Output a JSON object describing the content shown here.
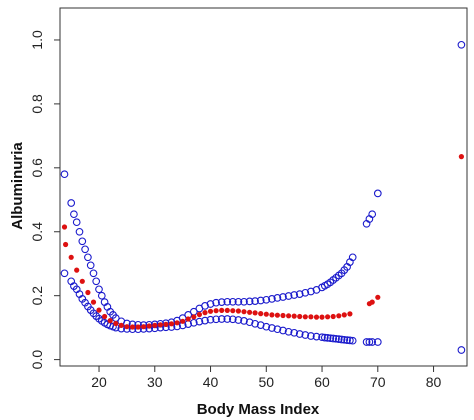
{
  "chart_data": {
    "type": "scatter",
    "title": "",
    "xlabel": "Body Mass Index",
    "ylabel": "Albuminuria",
    "xlim": [
      13,
      86
    ],
    "ylim": [
      -0.02,
      1.1
    ],
    "xticks": [
      20,
      30,
      40,
      50,
      60,
      70,
      80
    ],
    "yticks": [
      0.0,
      0.2,
      0.4,
      0.6,
      0.8,
      1.0
    ],
    "ytick_labels": [
      "0.0",
      "0.2",
      "0.4",
      "0.6",
      "0.8",
      "1.0"
    ],
    "grid": false,
    "legend": "none",
    "series": [
      {
        "role": "estimate",
        "marker": "filled-circle",
        "color": "#dd1111",
        "x": [
          13.8,
          14,
          15,
          16,
          17,
          18,
          19,
          20,
          21,
          22,
          23,
          24,
          25,
          26,
          27,
          28,
          29,
          30,
          31,
          32,
          33,
          34,
          35,
          36,
          37,
          38,
          39,
          40,
          41,
          42,
          43,
          44,
          45,
          46,
          47,
          48,
          49,
          50,
          51,
          52,
          53,
          54,
          55,
          56,
          57,
          58,
          59,
          60,
          61,
          62,
          63,
          64,
          65,
          68.5,
          69,
          70,
          85
        ],
        "y": [
          0.415,
          0.36,
          0.32,
          0.28,
          0.245,
          0.21,
          0.18,
          0.155,
          0.135,
          0.122,
          0.113,
          0.107,
          0.103,
          0.102,
          0.102,
          0.103,
          0.105,
          0.107,
          0.109,
          0.11,
          0.112,
          0.115,
          0.12,
          0.127,
          0.134,
          0.141,
          0.147,
          0.151,
          0.153,
          0.154,
          0.154,
          0.153,
          0.152,
          0.15,
          0.148,
          0.146,
          0.144,
          0.142,
          0.14,
          0.139,
          0.138,
          0.137,
          0.136,
          0.135,
          0.134,
          0.134,
          0.133,
          0.133,
          0.134,
          0.135,
          0.137,
          0.14,
          0.143,
          0.175,
          0.18,
          0.195,
          0.635
        ]
      },
      {
        "role": "upper-ci",
        "marker": "open-circle",
        "color": "#1a1acc",
        "x": [
          13.8,
          15,
          15.5,
          16,
          16.5,
          17,
          17.5,
          18,
          18.5,
          19,
          19.5,
          20,
          20.5,
          21,
          21.5,
          22,
          22.5,
          23,
          24,
          25,
          26,
          27,
          28,
          29,
          30,
          31,
          32,
          33,
          34,
          35,
          36,
          37,
          38,
          39,
          40,
          41,
          42,
          43,
          44,
          45,
          46,
          47,
          48,
          49,
          50,
          51,
          52,
          53,
          54,
          55,
          56,
          57,
          58,
          59,
          60,
          60.5,
          61,
          61.5,
          62,
          62.5,
          63,
          63.5,
          64,
          64.5,
          65,
          65.5,
          68,
          68.5,
          69,
          70,
          85
        ],
        "y": [
          0.58,
          0.49,
          0.455,
          0.43,
          0.4,
          0.37,
          0.345,
          0.32,
          0.295,
          0.27,
          0.245,
          0.22,
          0.2,
          0.18,
          0.165,
          0.15,
          0.14,
          0.13,
          0.12,
          0.113,
          0.11,
          0.109,
          0.108,
          0.109,
          0.11,
          0.112,
          0.114,
          0.117,
          0.122,
          0.13,
          0.14,
          0.15,
          0.16,
          0.168,
          0.174,
          0.178,
          0.18,
          0.181,
          0.181,
          0.181,
          0.181,
          0.182,
          0.183,
          0.185,
          0.187,
          0.19,
          0.193,
          0.196,
          0.199,
          0.202,
          0.205,
          0.209,
          0.213,
          0.218,
          0.226,
          0.231,
          0.236,
          0.242,
          0.249,
          0.256,
          0.263,
          0.27,
          0.28,
          0.29,
          0.305,
          0.32,
          0.425,
          0.44,
          0.455,
          0.52,
          0.985
        ]
      },
      {
        "role": "lower-ci",
        "marker": "open-circle",
        "color": "#1a1acc",
        "x": [
          13.8,
          15,
          15.5,
          16,
          16.5,
          17,
          17.5,
          18,
          18.5,
          19,
          19.5,
          20,
          20.5,
          21,
          21.5,
          22,
          22.5,
          23,
          24,
          25,
          26,
          27,
          28,
          29,
          30,
          31,
          32,
          33,
          34,
          35,
          36,
          37,
          38,
          39,
          40,
          41,
          42,
          43,
          44,
          45,
          46,
          47,
          48,
          49,
          50,
          51,
          52,
          53,
          54,
          55,
          56,
          57,
          58,
          59,
          60,
          60.5,
          61,
          61.5,
          62,
          62.5,
          63,
          63.5,
          64,
          64.5,
          65,
          65.5,
          68,
          68.5,
          69,
          70,
          85
        ],
        "y": [
          0.27,
          0.245,
          0.23,
          0.22,
          0.205,
          0.19,
          0.178,
          0.166,
          0.155,
          0.145,
          0.136,
          0.128,
          0.121,
          0.115,
          0.11,
          0.106,
          0.103,
          0.1,
          0.097,
          0.096,
          0.095,
          0.095,
          0.096,
          0.097,
          0.098,
          0.1,
          0.101,
          0.102,
          0.104,
          0.107,
          0.111,
          0.115,
          0.119,
          0.122,
          0.125,
          0.126,
          0.127,
          0.127,
          0.126,
          0.124,
          0.121,
          0.117,
          0.112,
          0.108,
          0.103,
          0.099,
          0.095,
          0.091,
          0.087,
          0.084,
          0.08,
          0.077,
          0.074,
          0.072,
          0.07,
          0.069,
          0.068,
          0.067,
          0.066,
          0.065,
          0.064,
          0.063,
          0.062,
          0.061,
          0.06,
          0.059,
          0.055,
          0.055,
          0.055,
          0.055,
          0.03
        ]
      }
    ]
  }
}
